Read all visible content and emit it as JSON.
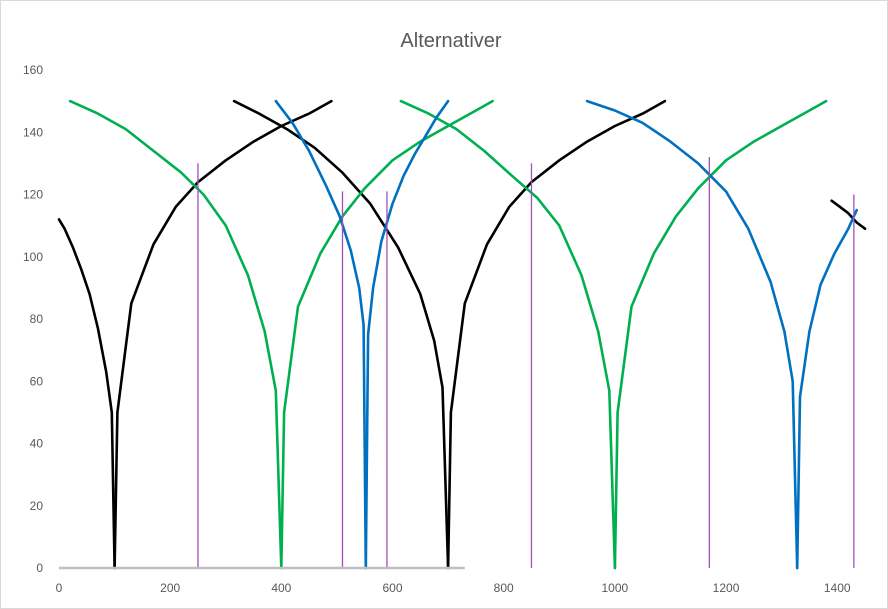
{
  "chart_data": {
    "type": "line",
    "title": "Alternativer",
    "xlabel": "",
    "ylabel": "",
    "xlim": [
      0,
      1450
    ],
    "ylim": [
      0,
      160
    ],
    "x_ticks": [
      0,
      200,
      400,
      600,
      800,
      1000,
      1200,
      1400
    ],
    "y_ticks": [
      0,
      20,
      40,
      60,
      80,
      100,
      120,
      140,
      160
    ],
    "grid": false,
    "legend": "none",
    "series": [
      {
        "color": "#000000",
        "segments": [
          {
            "x": [
              0,
              10,
              25,
              40,
              55,
              70,
              85,
              95,
              100
            ],
            "y": [
              112,
              109,
              103,
              96,
              88,
              77,
              63,
              50,
              0
            ]
          },
          {
            "x": [
              100,
              105,
              130,
              170,
              210,
              250,
              300,
              350,
              400,
              450,
              490
            ],
            "y": [
              0,
              50,
              85,
              104,
              116,
              124,
              131,
              137,
              142,
              146,
              150
            ]
          },
          {
            "x": [
              315,
              360,
              410,
              460,
              510,
              560,
              610,
              650,
              675,
              690,
              700
            ],
            "y": [
              150,
              146,
              141,
              135,
              127,
              117,
              103,
              88,
              73,
              58,
              0
            ]
          },
          {
            "x": [
              700,
              705,
              730,
              770,
              810,
              850,
              900,
              950,
              1000,
              1050,
              1090
            ],
            "y": [
              0,
              50,
              85,
              104,
              116,
              124,
              131,
              137,
              142,
              146,
              150
            ]
          },
          {
            "x": [
              1390,
              1405,
              1420,
              1435,
              1450
            ],
            "y": [
              118,
              116,
              114,
              111,
              109
            ]
          }
        ]
      },
      {
        "color": "#00b050",
        "segments": [
          {
            "x": [
              20,
              70,
              120,
              170,
              220,
              260,
              300,
              340,
              370,
              390,
              400
            ],
            "y": [
              150,
              146,
              141,
              134,
              127,
              120,
              110,
              94,
              76,
              57,
              0
            ]
          },
          {
            "x": [
              400,
              405,
              430,
              470,
              510,
              550,
              600,
              650,
              700,
              750,
              780
            ],
            "y": [
              0,
              50,
              84,
              101,
              113,
              122,
              131,
              137,
              142,
              147,
              150
            ]
          },
          {
            "x": [
              615,
              665,
              715,
              765,
              815,
              860,
              900,
              940,
              970,
              990,
              1000
            ],
            "y": [
              150,
              146,
              141,
              134,
              126,
              119,
              110,
              94,
              76,
              57,
              0
            ]
          },
          {
            "x": [
              1000,
              1005,
              1030,
              1070,
              1110,
              1150,
              1200,
              1250,
              1300,
              1350,
              1380
            ],
            "y": [
              0,
              50,
              84,
              101,
              113,
              122,
              131,
              137,
              142,
              147,
              150
            ]
          }
        ]
      },
      {
        "color": "#0070c0",
        "segments": [
          {
            "x": [
              390,
              420,
              450,
              480,
              505,
              525,
              540,
              548,
              552
            ],
            "y": [
              150,
              143,
              134,
              123,
              113,
              102,
              90,
              78,
              0
            ]
          },
          {
            "x": [
              552,
              556,
              565,
              580,
              600,
              620,
              640,
              660,
              680,
              700
            ],
            "y": [
              0,
              75,
              90,
              105,
              117,
              126,
              133,
              139,
              145,
              150
            ]
          },
          {
            "x": [
              950,
              1000,
              1050,
              1100,
              1150,
              1200,
              1240,
              1280,
              1305,
              1320,
              1328
            ],
            "y": [
              150,
              147,
              143,
              137,
              130,
              121,
              109,
              92,
              76,
              60,
              0
            ]
          },
          {
            "x": [
              1328,
              1333,
              1350,
              1370,
              1395,
              1420,
              1435
            ],
            "y": [
              0,
              55,
              76,
              91,
              101,
              109,
              115
            ]
          }
        ]
      },
      {
        "color": "#a050b8",
        "kind": "vlines",
        "x": [
          250,
          510,
          590,
          850,
          1170,
          1430
        ],
        "top": [
          130,
          121,
          121,
          130,
          132,
          120
        ]
      },
      {
        "color": "#bfbfbf",
        "kind": "hline",
        "x": [
          0,
          730
        ],
        "y": 0
      }
    ]
  }
}
